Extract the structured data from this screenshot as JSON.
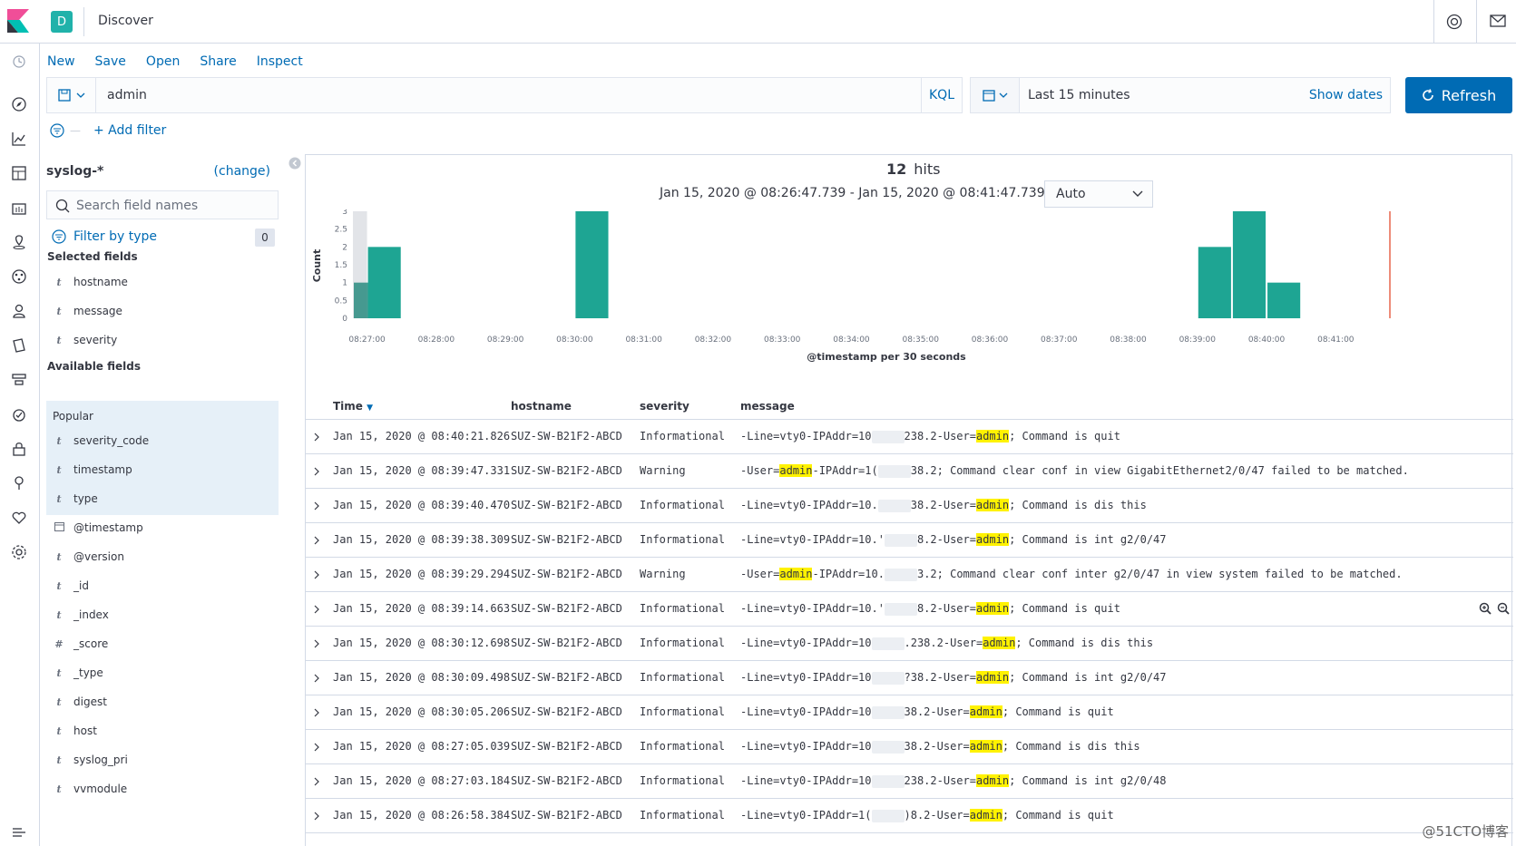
{
  "header": {
    "space_letter": "D",
    "app_title": "Discover",
    "brand_color": "#e8488b",
    "space_color": "#20b2aa"
  },
  "menu": {
    "items": [
      "New",
      "Save",
      "Open",
      "Share",
      "Inspect"
    ]
  },
  "query": {
    "value": "admin",
    "language": "KQL"
  },
  "time": {
    "label": "Last 15 minutes",
    "show_dates": "Show dates",
    "refresh": "Refresh"
  },
  "filters": {
    "add_filter": "+ Add filter"
  },
  "sidebar": {
    "index_pattern": "syslog-*",
    "change": "(change)",
    "search_placeholder": "Search field names",
    "filter_by_type": "Filter by type",
    "filter_count": "0",
    "selected_title": "Selected fields",
    "selected_fields": [
      {
        "type": "t",
        "name": "hostname"
      },
      {
        "type": "t",
        "name": "message"
      },
      {
        "type": "t",
        "name": "severity"
      }
    ],
    "available_title": "Available fields",
    "popular_label": "Popular",
    "popular_fields": [
      {
        "type": "t",
        "name": "severity_code"
      },
      {
        "type": "t",
        "name": "timestamp"
      },
      {
        "type": "t",
        "name": "type"
      }
    ],
    "other_fields": [
      {
        "type": "calendar",
        "name": "@timestamp"
      },
      {
        "type": "t",
        "name": "@version"
      },
      {
        "type": "t",
        "name": "_id"
      },
      {
        "type": "t",
        "name": "_index"
      },
      {
        "type": "#",
        "name": "_score"
      },
      {
        "type": "t",
        "name": "_type"
      },
      {
        "type": "t",
        "name": "digest"
      },
      {
        "type": "t",
        "name": "host"
      },
      {
        "type": "t",
        "name": "syslog_pri"
      },
      {
        "type": "t",
        "name": "vvmodule"
      }
    ]
  },
  "results": {
    "hits": "12",
    "hits_label": "hits",
    "range": "Jan 15, 2020 @ 08:26:47.739 - Jan 15, 2020 @ 08:41:47.739 —",
    "interval": "Auto"
  },
  "chart_data": {
    "type": "bar",
    "ylabel": "Count",
    "xlabel": "@timestamp per 30 seconds",
    "ylim": [
      0,
      3
    ],
    "yticks": [
      "0",
      "0.5",
      "1",
      "1.5",
      "2",
      "2.5",
      "3"
    ],
    "xticks": [
      "08:27:00",
      "08:28:00",
      "08:29:00",
      "08:30:00",
      "08:31:00",
      "08:32:00",
      "08:33:00",
      "08:34:00",
      "08:35:00",
      "08:36:00",
      "08:37:00",
      "08:38:00",
      "08:39:00",
      "08:40:00",
      "08:41:00"
    ],
    "bar_color": "#1ea593",
    "bars": [
      {
        "x": "08:26:30",
        "value": 1,
        "partial_bucket": true
      },
      {
        "x": "08:27:00",
        "value": 2
      },
      {
        "x": "08:30:00",
        "value": 3
      },
      {
        "x": "08:39:00",
        "value": 2
      },
      {
        "x": "08:39:30",
        "value": 3
      },
      {
        "x": "08:40:00",
        "value": 1
      }
    ],
    "now_marker": "08:41:47.739"
  },
  "table": {
    "columns": [
      "Time",
      "hostname",
      "severity",
      "message"
    ],
    "rows": [
      {
        "time": "Jan 15, 2020 @ 08:40:21.826",
        "hostname": "SUZ-SW-B21F2-ABCD",
        "severity": "Informational",
        "pre": "-Line=vty0-IPAddr=10",
        "mid": "238.2-User=",
        "hl": "admin",
        "post": "; Command is quit"
      },
      {
        "time": "Jan 15, 2020 @ 08:39:47.331",
        "hostname": "SUZ-SW-B21F2-ABCD",
        "severity": "Warning",
        "pre": "-User=",
        "hl": "admin",
        "post": "-IPAddr=1(",
        "mid2": "38.2; Command clear conf in view GigabitEthernet2/0/47 failed to be matched.",
        "warning": true
      },
      {
        "time": "Jan 15, 2020 @ 08:39:40.470",
        "hostname": "SUZ-SW-B21F2-ABCD",
        "severity": "Informational",
        "pre": "-Line=vty0-IPAddr=10.",
        "mid": "38.2-User=",
        "hl": "admin",
        "post": "; Command is dis this"
      },
      {
        "time": "Jan 15, 2020 @ 08:39:38.309",
        "hostname": "SUZ-SW-B21F2-ABCD",
        "severity": "Informational",
        "pre": "-Line=vty0-IPAddr=10.'",
        "mid": "8.2-User=",
        "hl": "admin",
        "post": "; Command is int g2/0/47"
      },
      {
        "time": "Jan 15, 2020 @ 08:39:29.294",
        "hostname": "SUZ-SW-B21F2-ABCD",
        "severity": "Warning",
        "pre": "-User=",
        "hl": "admin",
        "post": "-IPAddr=10.",
        "mid2": "3.2; Command clear conf inter g2/0/47 in view system failed to be matched.",
        "warning": true
      },
      {
        "time": "Jan 15, 2020 @ 08:39:14.663",
        "hostname": "SUZ-SW-B21F2-ABCD",
        "severity": "Informational",
        "pre": "-Line=vty0-IPAddr=10.'",
        "mid": "8.2-User=",
        "hl": "admin",
        "post": "; Command is quit",
        "zoom": true
      },
      {
        "time": "Jan 15, 2020 @ 08:30:12.698",
        "hostname": "SUZ-SW-B21F2-ABCD",
        "severity": "Informational",
        "pre": "-Line=vty0-IPAddr=10",
        "mid": ".238.2-User=",
        "hl": "admin",
        "post": "; Command is dis this"
      },
      {
        "time": "Jan 15, 2020 @ 08:30:09.498",
        "hostname": "SUZ-SW-B21F2-ABCD",
        "severity": "Informational",
        "pre": "-Line=vty0-IPAddr=10",
        "mid": "?38.2-User=",
        "hl": "admin",
        "post": "; Command is int g2/0/47"
      },
      {
        "time": "Jan 15, 2020 @ 08:30:05.206",
        "hostname": "SUZ-SW-B21F2-ABCD",
        "severity": "Informational",
        "pre": "-Line=vty0-IPAddr=10",
        "mid": "38.2-User=",
        "hl": "admin",
        "post": "; Command is quit"
      },
      {
        "time": "Jan 15, 2020 @ 08:27:05.039",
        "hostname": "SUZ-SW-B21F2-ABCD",
        "severity": "Informational",
        "pre": "-Line=vty0-IPAddr=10",
        "mid": "38.2-User=",
        "hl": "admin",
        "post": "; Command is dis this"
      },
      {
        "time": "Jan 15, 2020 @ 08:27:03.184",
        "hostname": "SUZ-SW-B21F2-ABCD",
        "severity": "Informational",
        "pre": "-Line=vty0-IPAddr=10",
        "mid": "238.2-User=",
        "hl": "admin",
        "post": "; Command is int g2/0/48"
      },
      {
        "time": "Jan 15, 2020 @ 08:26:58.384",
        "hostname": "SUZ-SW-B21F2-ABCD",
        "severity": "Informational",
        "pre": "-Line=vty0-IPAddr=1(",
        "mid": ")8.2-User=",
        "hl": "admin",
        "post": "; Command is quit"
      }
    ]
  },
  "watermark": "@51CTO博客"
}
